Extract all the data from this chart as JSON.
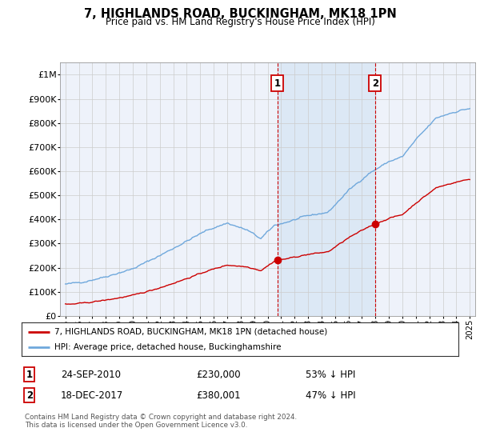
{
  "title": "7, HIGHLANDS ROAD, BUCKINGHAM, MK18 1PN",
  "subtitle": "Price paid vs. HM Land Registry's House Price Index (HPI)",
  "hpi_color": "#6fa8dc",
  "hpi_fill_color": "#dce8f5",
  "price_color": "#cc0000",
  "transaction1_date": "24-SEP-2010",
  "transaction1_price": 230000,
  "transaction1_year": 2010.72,
  "transaction2_date": "18-DEC-2017",
  "transaction2_price": 380001,
  "transaction2_year": 2017.97,
  "transaction1_pct": "53% ↓ HPI",
  "transaction2_pct": "47% ↓ HPI",
  "legend_property": "7, HIGHLANDS ROAD, BUCKINGHAM, MK18 1PN (detached house)",
  "legend_hpi": "HPI: Average price, detached house, Buckinghamshire",
  "footnote": "Contains HM Land Registry data © Crown copyright and database right 2024.\nThis data is licensed under the Open Government Licence v3.0.",
  "ylim": [
    0,
    1050000
  ],
  "yticks": [
    0,
    100000,
    200000,
    300000,
    400000,
    500000,
    600000,
    700000,
    800000,
    900000,
    1000000
  ],
  "ytick_labels": [
    "£0",
    "£100K",
    "£200K",
    "£300K",
    "£400K",
    "£500K",
    "£600K",
    "£700K",
    "£800K",
    "£900K",
    "£1M"
  ],
  "background_color": "#ffffff",
  "plot_bg_color": "#eef2fa"
}
